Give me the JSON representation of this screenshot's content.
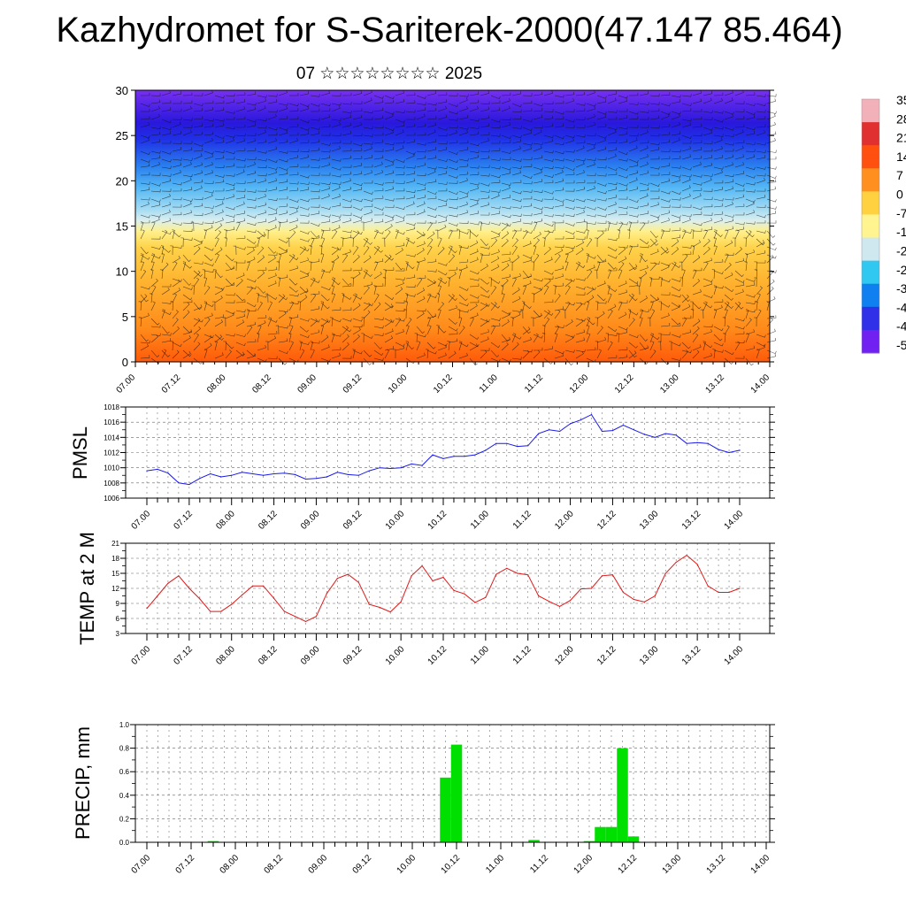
{
  "title": "Kazhydromet for S-Sariterek-2000(47.147 85.464)",
  "subtitle": "07 ☆☆☆☆☆☆☆☆ 2025",
  "colors": {
    "pmsl_line": "#1a1ae6",
    "temp_line": "#dd1a1a",
    "precip_bar": "#00e000"
  },
  "chart_data": [
    {
      "type": "heatmap",
      "ylim": [
        0,
        30
      ],
      "yticks": [
        "0",
        "5",
        "10",
        "15",
        "20",
        "25",
        "30"
      ],
      "xticks": [
        "07.00",
        "07.12",
        "08.00",
        "08.12",
        "09.00",
        "09.12",
        "10.00",
        "10.12",
        "11.00",
        "11.12",
        "12.00",
        "12.12",
        "13.00",
        "13.12",
        "14.00"
      ],
      "colorbar_labels": [
        "35",
        "28",
        "21",
        "14",
        "7",
        "0",
        "-7",
        "-1",
        "-2",
        "-2",
        "-3",
        "-4",
        "-4",
        "-5"
      ],
      "colorbar_colors": [
        "#f2b0b8",
        "#e03030",
        "#ff5010",
        "#ff9020",
        "#ffd040",
        "#fff490",
        "#cfe8ef",
        "#30c8f0",
        "#1080f0",
        "#3030e8",
        "#7020f0"
      ],
      "overlay": "wind barbs"
    },
    {
      "type": "line",
      "ylabel": "PMSL",
      "ylim": [
        1006,
        1018
      ],
      "yticks": [
        "1006",
        "1008",
        "1010",
        "1012",
        "1014",
        "1016",
        "1018"
      ],
      "xticks": [
        "07.00",
        "07.12",
        "08.00",
        "08.12",
        "09.00",
        "09.12",
        "10.00",
        "10.12",
        "11.00",
        "11.12",
        "12.00",
        "12.12",
        "13.00",
        "13.12",
        "14.00"
      ],
      "xmax": 168,
      "x": [
        0,
        3,
        6,
        9,
        12,
        15,
        18,
        21,
        24,
        27,
        30,
        33,
        36,
        39,
        42,
        45,
        48,
        51,
        54,
        57,
        60,
        63,
        66,
        69,
        72,
        75,
        78,
        81,
        84,
        87,
        90,
        93,
        96,
        99,
        102,
        105,
        108,
        111,
        114,
        117,
        120,
        123,
        126,
        129,
        132,
        135,
        138,
        141,
        144,
        147,
        150,
        153,
        156,
        159,
        162,
        165,
        168
      ],
      "values": [
        1009.6,
        1009.8,
        1009.3,
        1008.0,
        1007.8,
        1008.6,
        1009.2,
        1008.8,
        1009.0,
        1009.4,
        1009.2,
        1009.0,
        1009.2,
        1009.3,
        1009.1,
        1008.5,
        1008.6,
        1008.8,
        1009.4,
        1009.1,
        1009.0,
        1009.6,
        1010.0,
        1009.9,
        1010.0,
        1010.5,
        1010.3,
        1011.7,
        1011.2,
        1011.5,
        1011.5,
        1011.7,
        1012.3,
        1013.2,
        1013.2,
        1012.8,
        1012.9,
        1014.5,
        1015.0,
        1014.8,
        1015.8,
        1016.3,
        1017.0,
        1014.8,
        1014.9,
        1015.6,
        1015.0,
        1014.4,
        1014.0,
        1014.5,
        1014.3,
        1013.2,
        1013.3,
        1013.2,
        1012.4,
        1012.0,
        1012.3
      ]
    },
    {
      "type": "line",
      "ylabel": "TEMP at 2 M",
      "ylim": [
        3,
        21
      ],
      "yticks": [
        "3",
        "6",
        "9",
        "12",
        "15",
        "18",
        "21"
      ],
      "xticks": [
        "07.00",
        "07.12",
        "08.00",
        "08.12",
        "09.00",
        "09.12",
        "10.00",
        "10.12",
        "11.00",
        "11.12",
        "12.00",
        "12.12",
        "13.00",
        "13.12",
        "14.00"
      ],
      "xmax": 168,
      "x": [
        0,
        3,
        6,
        9,
        12,
        15,
        18,
        21,
        24,
        27,
        30,
        33,
        36,
        39,
        42,
        45,
        48,
        51,
        54,
        57,
        60,
        63,
        66,
        69,
        72,
        75,
        78,
        81,
        84,
        87,
        90,
        93,
        96,
        99,
        102,
        105,
        108,
        111,
        114,
        117,
        120,
        123,
        126,
        129,
        132,
        135,
        138,
        141,
        144,
        147,
        150,
        153,
        156,
        159,
        162,
        165,
        168
      ],
      "values": [
        8.0,
        10.5,
        13.0,
        14.5,
        12.0,
        9.9,
        7.4,
        7.4,
        8.8,
        10.7,
        12.5,
        12.5,
        10.0,
        7.4,
        6.4,
        5.4,
        6.4,
        11.0,
        14.0,
        14.8,
        13.2,
        8.8,
        8.2,
        7.3,
        9.3,
        14.5,
        16.5,
        13.5,
        14.2,
        11.6,
        10.9,
        9.2,
        10.2,
        14.8,
        16.0,
        15.0,
        14.7,
        10.5,
        9.4,
        8.4,
        9.6,
        11.9,
        12.0,
        14.5,
        14.7,
        11.2,
        9.8,
        9.3,
        10.5,
        15.0,
        17.2,
        18.6,
        16.8,
        12.5,
        11.2,
        11.2,
        12.0
      ]
    },
    {
      "type": "bar",
      "ylabel": "PRECIP, mm",
      "ylim": [
        0,
        1.0
      ],
      "yticks": [
        "0.0",
        "0.2",
        "0.4",
        "0.6",
        "0.8",
        "1.0"
      ],
      "xticks": [
        "07.00",
        "07.12",
        "08.00",
        "08.12",
        "09.00",
        "09.12",
        "10.00",
        "10.12",
        "11.00",
        "11.12",
        "12.00",
        "12.12",
        "13.00",
        "13.12",
        "14.00"
      ],
      "xmax": 168,
      "bar_width": 3,
      "x": [
        18,
        81,
        84,
        105,
        120,
        123,
        126,
        129,
        132
      ],
      "values": [
        0.01,
        0.55,
        0.83,
        0.02,
        0.01,
        0.13,
        0.13,
        0.8,
        0.05
      ]
    }
  ]
}
